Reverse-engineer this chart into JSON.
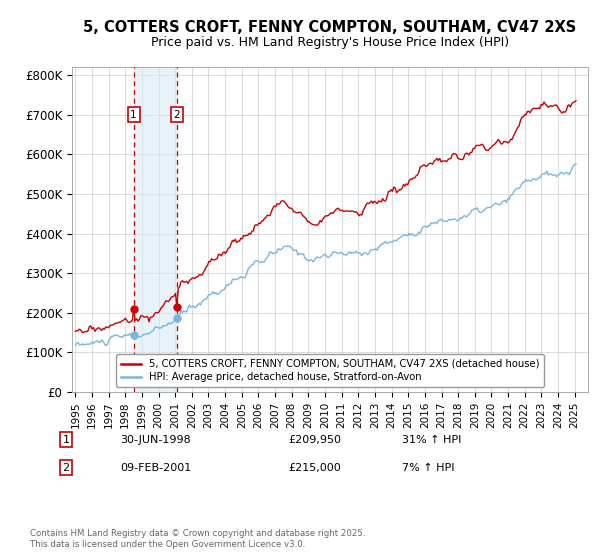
{
  "title_line1": "5, COTTERS CROFT, FENNY COMPTON, SOUTHAM, CV47 2XS",
  "title_line2": "Price paid vs. HM Land Registry's House Price Index (HPI)",
  "ylabel_ticks": [
    "£0",
    "£100K",
    "£200K",
    "£300K",
    "£400K",
    "£500K",
    "£600K",
    "£700K",
    "£800K"
  ],
  "ytick_values": [
    0,
    100000,
    200000,
    300000,
    400000,
    500000,
    600000,
    700000,
    800000
  ],
  "ylim": [
    0,
    820000
  ],
  "legend_line1": "5, COTTERS CROFT, FENNY COMPTON, SOUTHAM, CV47 2XS (detached house)",
  "legend_line2": "HPI: Average price, detached house, Stratford-on-Avon",
  "sale1_date": "30-JUN-1998",
  "sale1_price": 209950,
  "sale1_hpi": "31% ↑ HPI",
  "sale1_label": "1",
  "sale1_year": 1998.5,
  "sale2_date": "09-FEB-2001",
  "sale2_price": 215000,
  "sale2_hpi": "7% ↑ HPI",
  "sale2_label": "2",
  "sale2_year": 2001.1,
  "hpi_color": "#7ab5e0",
  "price_color": "#cc0000",
  "annotation_color": "#cc0000",
  "shade_color": "#daeaf5",
  "background_color": "#ffffff",
  "grid_color": "#cccccc",
  "footer_text": "Contains HM Land Registry data © Crown copyright and database right 2025.\nThis data is licensed under the Open Government Licence v3.0.",
  "xlim_start": 1994.8,
  "xlim_end": 2025.8
}
